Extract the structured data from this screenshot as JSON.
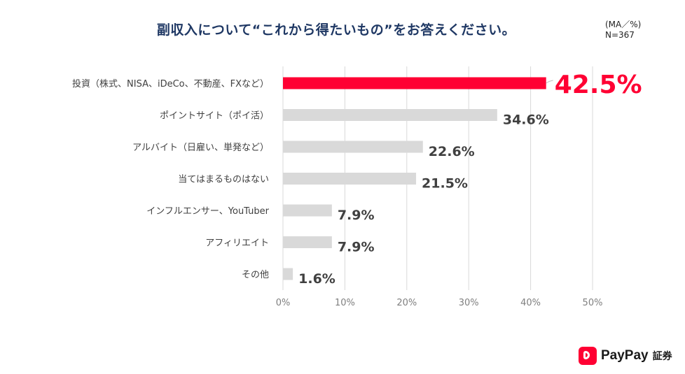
{
  "title": "副収入について“これから得たいもの”をお答えください。",
  "note": {
    "line1": "(MA／%)",
    "line2": "N=367"
  },
  "chart_data": {
    "type": "bar",
    "orientation": "horizontal",
    "categories": [
      "投資（株式、NISA、iDeCo、不動産、FXなど）",
      "ポイントサイト（ポイ活）",
      "アルバイト（日雇い、単発など）",
      "当てはまるものはない",
      "インフルエンサー、YouTuber",
      "アフィリエイト",
      "その他"
    ],
    "values": [
      42.5,
      34.6,
      22.6,
      21.5,
      7.9,
      7.9,
      1.6
    ],
    "value_labels": [
      "42.5%",
      "34.6%",
      "22.6%",
      "21.5%",
      "7.9%",
      "7.9%",
      "1.6%"
    ],
    "x_ticks": [
      "0%",
      "10%",
      "20%",
      "30%",
      "40%",
      "50%"
    ],
    "xlim": [
      0,
      50
    ],
    "grid": true,
    "highlight_index": 0,
    "colors": {
      "highlight": "#ff0033",
      "default": "#d9d9d9",
      "grid": "#d9d9d9"
    }
  },
  "brand": {
    "name": "PayPay",
    "sub": "証券"
  }
}
